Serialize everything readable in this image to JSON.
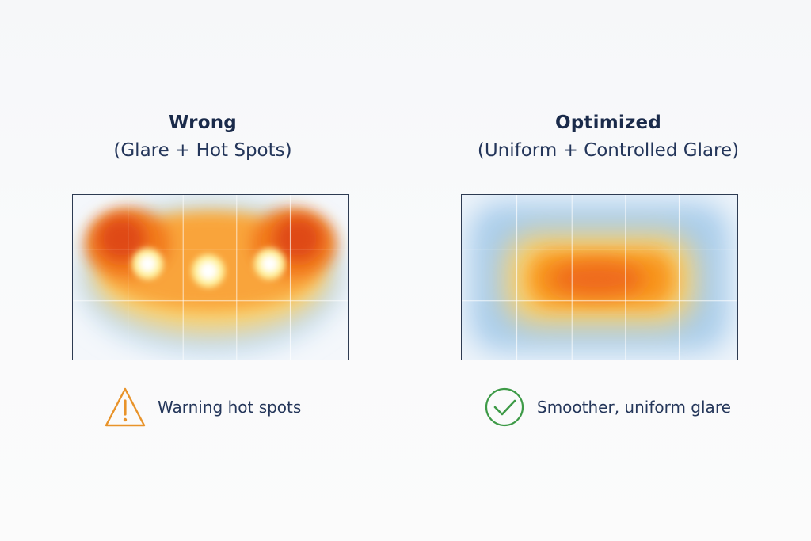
{
  "left_panel": {
    "title": "Wrong",
    "subtitle": "(Glare + Hot Spots)",
    "status_label": "Warning hot spots",
    "status_icon": "warning-triangle-icon",
    "status_color": "#e8932a"
  },
  "right_panel": {
    "title": "Optimized",
    "subtitle": "(Uniform + Controlled Glare)",
    "status_label": "Smoother, uniform glare",
    "status_icon": "check-circle-icon",
    "status_color": "#3d9a47"
  },
  "colors": {
    "text_dark": "#1a2a4a",
    "frame_border": "#2d3b52",
    "cool_blue": "#a9cdec",
    "warm_orange": "#f8951f",
    "hot_red": "#e24d10",
    "hot_white": "#ffffff"
  }
}
